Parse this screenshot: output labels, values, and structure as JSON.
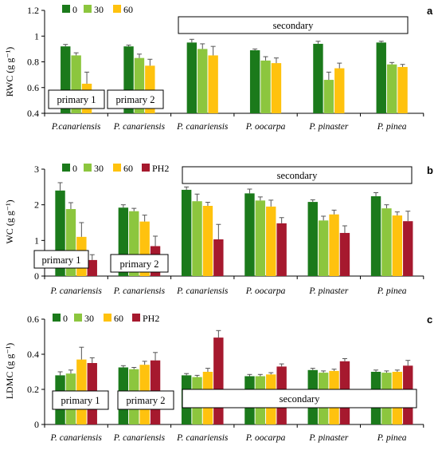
{
  "colors": {
    "0": "#1b7a1b",
    "30": "#8cc63e",
    "60": "#ffc20e",
    "PH2": "#a6192e",
    "axis": "#000000"
  },
  "chart_data": [
    {
      "type": "bar",
      "panel": "a",
      "ylabel": "RWC (g g⁻¹)",
      "ylim": [
        0.4,
        1.2
      ],
      "yticks": [
        "0.4",
        "0.6",
        "0.8",
        "1",
        "1.2"
      ],
      "categories": [
        "P.canariensis",
        "P. canariensis",
        "P. canariensis",
        "P. oocarpa",
        "P. pinaster",
        "P. pinea"
      ],
      "series": [
        {
          "name": "0",
          "values": [
            0.92,
            0.92,
            0.95,
            0.89,
            0.94,
            0.95
          ],
          "errors": [
            0.015,
            0.01,
            0.025,
            0.01,
            0.02,
            0.01
          ]
        },
        {
          "name": "30",
          "values": [
            0.85,
            0.83,
            0.9,
            0.81,
            0.66,
            0.78
          ],
          "errors": [
            0.02,
            0.03,
            0.04,
            0.03,
            0.06,
            0.015
          ]
        },
        {
          "name": "60",
          "values": [
            0.63,
            0.77,
            0.85,
            0.79,
            0.75,
            0.76
          ],
          "errors": [
            0.09,
            0.05,
            0.07,
            0.04,
            0.04,
            0.02
          ]
        }
      ],
      "annotations": [
        "primary 1",
        "primary 2",
        "secondary"
      ]
    },
    {
      "type": "bar",
      "panel": "b",
      "ylabel": "WC (g g⁻¹)",
      "ylim": [
        0,
        3
      ],
      "yticks": [
        "0",
        "1",
        "2",
        "3"
      ],
      "categories": [
        "P. canariensis",
        "P. canariensis",
        "P. canariensis",
        "P. oocarpa",
        "P. pinaster",
        "P. pinea"
      ],
      "series": [
        {
          "name": "0",
          "values": [
            2.4,
            1.92,
            2.42,
            2.32,
            2.08,
            2.24
          ],
          "errors": [
            0.22,
            0.08,
            0.08,
            0.12,
            0.06,
            0.1
          ]
        },
        {
          "name": "30",
          "values": [
            1.88,
            1.82,
            2.1,
            2.12,
            1.56,
            1.9
          ],
          "errors": [
            0.18,
            0.08,
            0.2,
            0.1,
            0.12,
            0.1
          ]
        },
        {
          "name": "60",
          "values": [
            1.1,
            1.53,
            1.97,
            1.95,
            1.73,
            1.7
          ],
          "errors": [
            0.4,
            0.18,
            0.1,
            0.18,
            0.12,
            0.1
          ]
        },
        {
          "name": "PH2",
          "values": [
            0.45,
            0.84,
            1.03,
            1.48,
            1.21,
            1.54
          ],
          "errors": [
            0.15,
            0.28,
            0.42,
            0.16,
            0.2,
            0.28
          ]
        }
      ],
      "annotations": [
        "primary 1",
        "primary  2",
        "secondary"
      ]
    },
    {
      "type": "bar",
      "panel": "c",
      "ylabel": "LDMC (g g⁻¹)",
      "ylim": [
        0,
        0.6
      ],
      "yticks": [
        "0",
        "0.2",
        "0.4",
        "0.6"
      ],
      "categories": [
        "P. canariensis",
        "P. canariensis",
        "P. canariensis",
        "P. oocarpa",
        "P. pinaster",
        "P. pinea"
      ],
      "series": [
        {
          "name": "0",
          "values": [
            0.28,
            0.325,
            0.28,
            0.275,
            0.31,
            0.3
          ],
          "errors": [
            0.02,
            0.01,
            0.01,
            0.01,
            0.01,
            0.01
          ]
        },
        {
          "name": "30",
          "values": [
            0.29,
            0.315,
            0.27,
            0.275,
            0.295,
            0.295
          ],
          "errors": [
            0.02,
            0.01,
            0.01,
            0.01,
            0.01,
            0.01
          ]
        },
        {
          "name": "60",
          "values": [
            0.37,
            0.34,
            0.3,
            0.285,
            0.305,
            0.3
          ],
          "errors": [
            0.07,
            0.02,
            0.02,
            0.01,
            0.01,
            0.01
          ]
        },
        {
          "name": "PH2",
          "values": [
            0.35,
            0.365,
            0.495,
            0.33,
            0.36,
            0.335
          ],
          "errors": [
            0.03,
            0.045,
            0.04,
            0.015,
            0.015,
            0.03
          ]
        }
      ],
      "annotations": [
        "primary 1",
        "primary 2",
        "secondary"
      ]
    }
  ]
}
